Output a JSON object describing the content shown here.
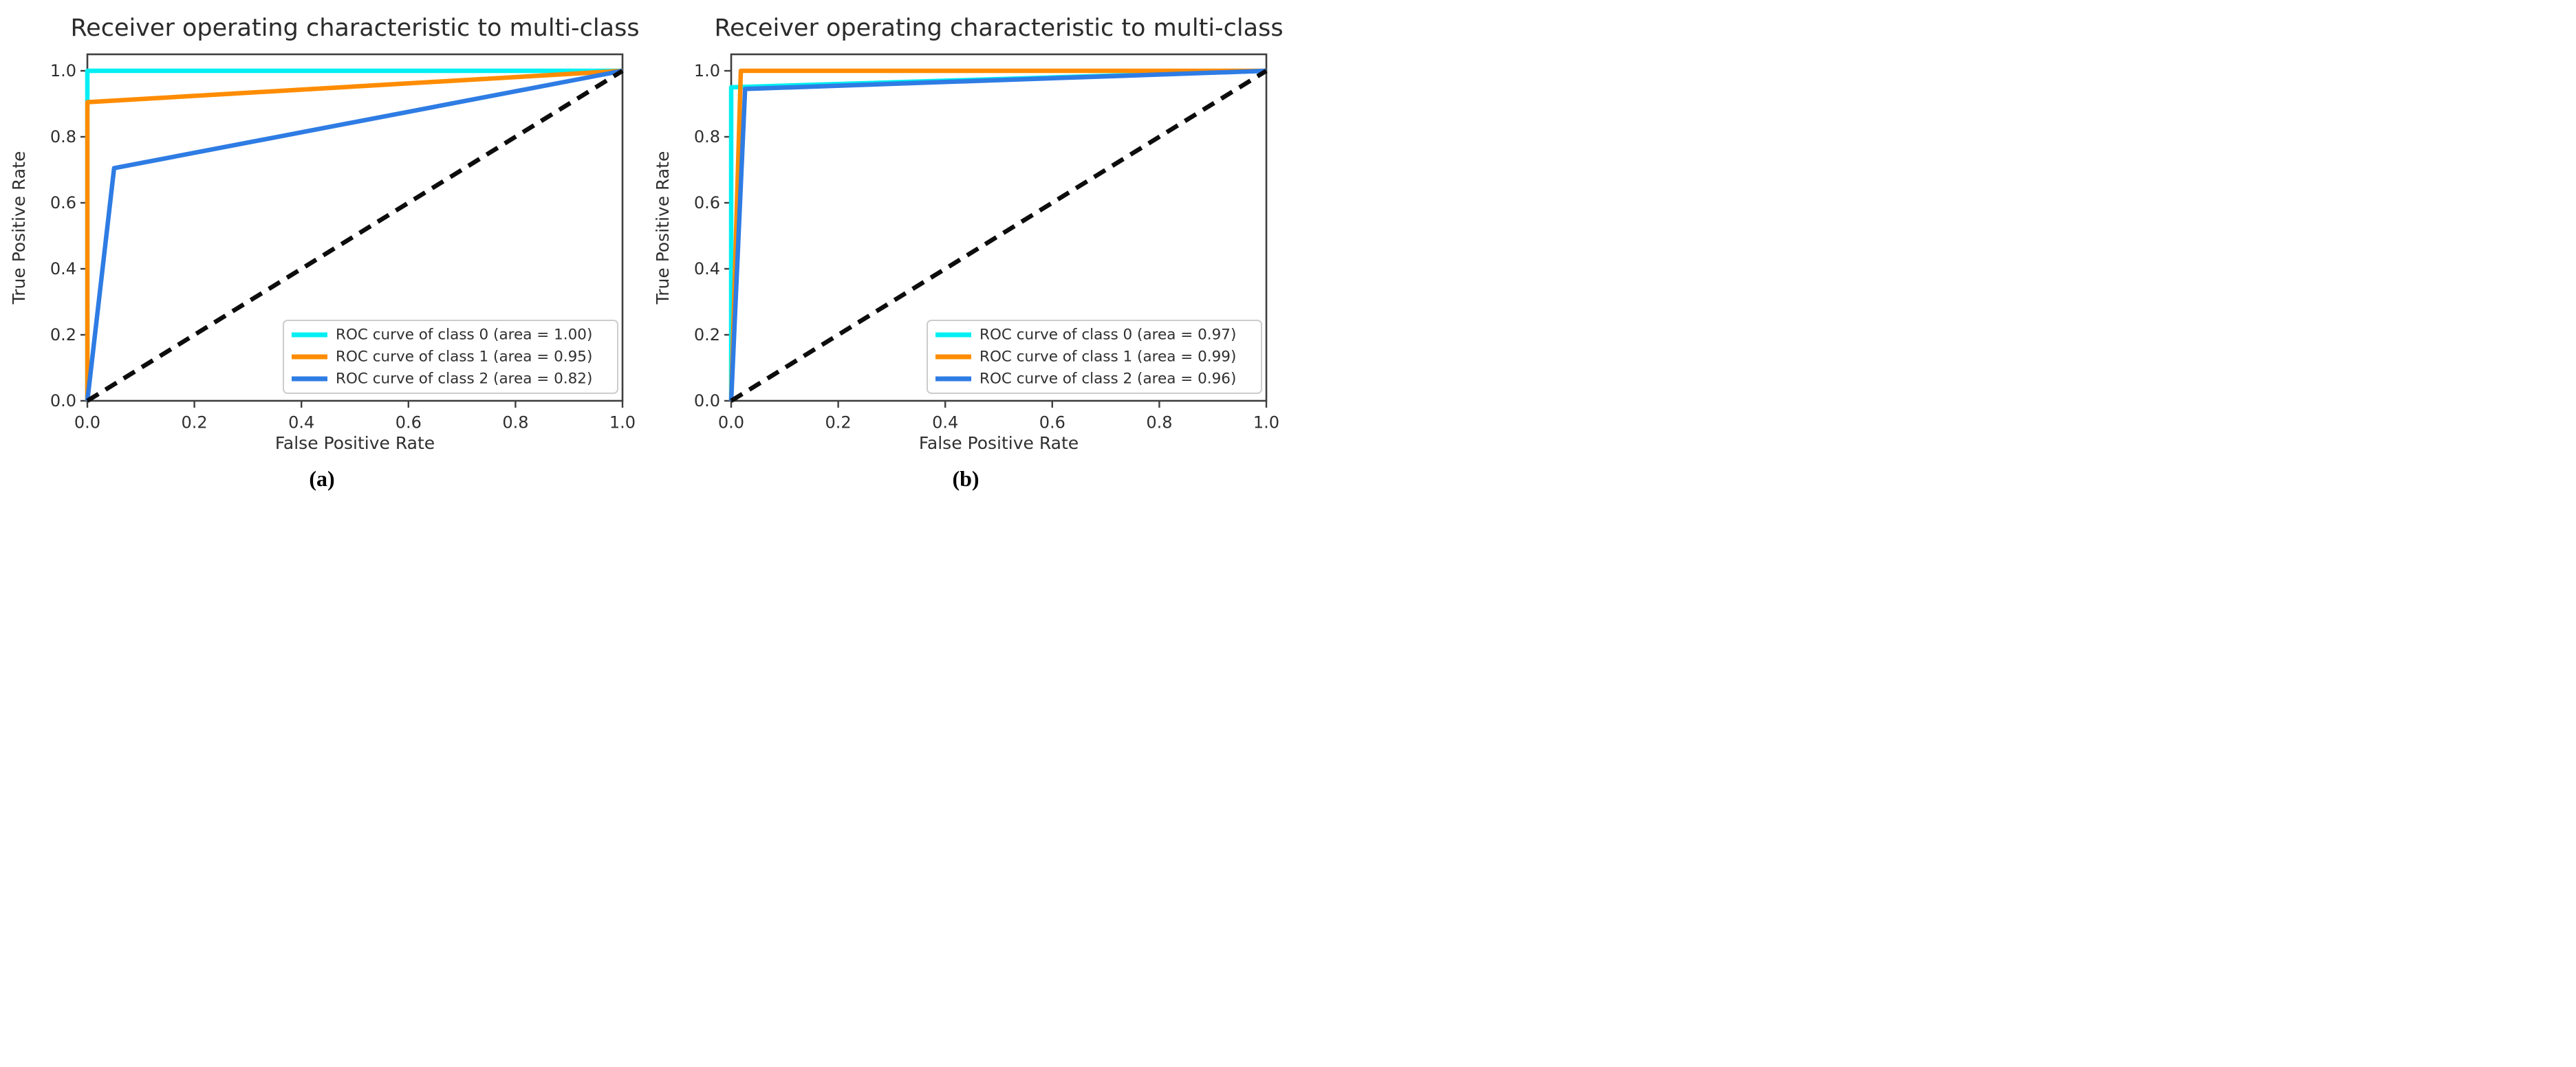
{
  "page": {
    "background": "#ffffff"
  },
  "chart_data": [
    {
      "type": "line",
      "panel": "a",
      "caption": "(a)",
      "title": "Receiver operating characteristic to multi-class",
      "xlabel": "False Positive Rate",
      "ylabel": "True Positive Rate",
      "xlim": [
        0.0,
        1.0
      ],
      "ylim": [
        0.0,
        1.05
      ],
      "xticks": [
        0.0,
        0.2,
        0.4,
        0.6,
        0.8,
        1.0
      ],
      "xtick_labels": [
        "0.0",
        "0.2",
        "0.4",
        "0.6",
        "0.8",
        "1.0"
      ],
      "yticks": [
        0.0,
        0.2,
        0.4,
        0.6,
        0.8,
        1.0
      ],
      "ytick_labels": [
        "0.0",
        "0.2",
        "0.4",
        "0.6",
        "0.8",
        "1.0"
      ],
      "grid": false,
      "legend": {
        "position": "lower right"
      },
      "colors": {
        "class0": "#00eff2",
        "class1": "#ff8c00",
        "class2": "#2e7ce4",
        "chance": "#0d0d0d"
      },
      "series": [
        {
          "name": "ROC curve of class 0 (area = 1.00)",
          "color": "#00eff2",
          "style": "solid",
          "in_legend": true,
          "points": [
            [
              0,
              0
            ],
            [
              0,
              1
            ],
            [
              1,
              1
            ]
          ]
        },
        {
          "name": "ROC curve of class 1 (area = 0.95)",
          "color": "#ff8c00",
          "style": "solid",
          "in_legend": true,
          "points": [
            [
              0,
              0
            ],
            [
              0,
              0.905
            ],
            [
              1,
              1
            ]
          ]
        },
        {
          "name": "ROC curve of class 2 (area = 0.82)",
          "color": "#2e7ce4",
          "style": "solid",
          "in_legend": true,
          "points": [
            [
              0,
              0
            ],
            [
              0.05,
              0.705
            ],
            [
              1,
              1
            ]
          ]
        },
        {
          "name": "chance diagonal",
          "color": "#0d0d0d",
          "style": "dashed",
          "in_legend": false,
          "points": [
            [
              0,
              0
            ],
            [
              1,
              1
            ]
          ]
        }
      ]
    },
    {
      "type": "line",
      "panel": "b",
      "caption": "(b)",
      "title": "Receiver operating characteristic to multi-class",
      "xlabel": "False Positive Rate",
      "ylabel": "True Positive Rate",
      "xlim": [
        0.0,
        1.0
      ],
      "ylim": [
        0.0,
        1.05
      ],
      "xticks": [
        0.0,
        0.2,
        0.4,
        0.6,
        0.8,
        1.0
      ],
      "xtick_labels": [
        "0.0",
        "0.2",
        "0.4",
        "0.6",
        "0.8",
        "1.0"
      ],
      "yticks": [
        0.0,
        0.2,
        0.4,
        0.6,
        0.8,
        1.0
      ],
      "ytick_labels": [
        "0.0",
        "0.2",
        "0.4",
        "0.6",
        "0.8",
        "1.0"
      ],
      "grid": false,
      "legend": {
        "position": "lower right"
      },
      "colors": {
        "class0": "#00eff2",
        "class1": "#ff8c00",
        "class2": "#2e7ce4",
        "chance": "#0d0d0d"
      },
      "series": [
        {
          "name": "ROC curve of class 0 (area = 0.97)",
          "color": "#00eff2",
          "style": "solid",
          "in_legend": true,
          "points": [
            [
              0,
              0
            ],
            [
              0,
              0.95
            ],
            [
              1,
              1
            ]
          ]
        },
        {
          "name": "ROC curve of class 1 (area = 0.99)",
          "color": "#ff8c00",
          "style": "solid",
          "in_legend": true,
          "points": [
            [
              0,
              0
            ],
            [
              0.018,
              1
            ],
            [
              1,
              1
            ]
          ]
        },
        {
          "name": "ROC curve of class 2 (area = 0.96)",
          "color": "#2e7ce4",
          "style": "solid",
          "in_legend": true,
          "points": [
            [
              0,
              0
            ],
            [
              0.026,
              0.945
            ],
            [
              1,
              1
            ]
          ]
        },
        {
          "name": "chance diagonal",
          "color": "#0d0d0d",
          "style": "dashed",
          "in_legend": false,
          "points": [
            [
              0,
              0
            ],
            [
              1,
              1
            ]
          ]
        }
      ]
    }
  ]
}
